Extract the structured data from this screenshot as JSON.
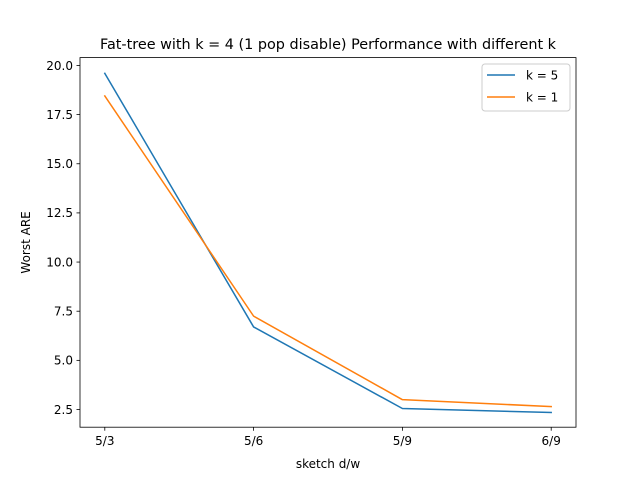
{
  "chart_data": {
    "type": "line",
    "title": "Fat-tree with k = 4 (1 pop disable) Performance with different k",
    "xlabel": "sketch d/w",
    "ylabel": "Worst ARE",
    "categories": [
      "5/3",
      "5/6",
      "5/9",
      "6/9"
    ],
    "yticks": [
      "2.5",
      "5.0",
      "7.5",
      "10.0",
      "12.5",
      "15.0",
      "17.5",
      "20.0"
    ],
    "ylim": [
      1.6,
      20.4
    ],
    "grid": false,
    "legend_position": "top-right",
    "series": [
      {
        "name": "k = 5",
        "color": "#1f77b4",
        "values": [
          19.6,
          6.7,
          2.55,
          2.35
        ]
      },
      {
        "name": "k = 1",
        "color": "#ff7f0e",
        "values": [
          18.45,
          7.25,
          3.0,
          2.65
        ]
      }
    ]
  }
}
